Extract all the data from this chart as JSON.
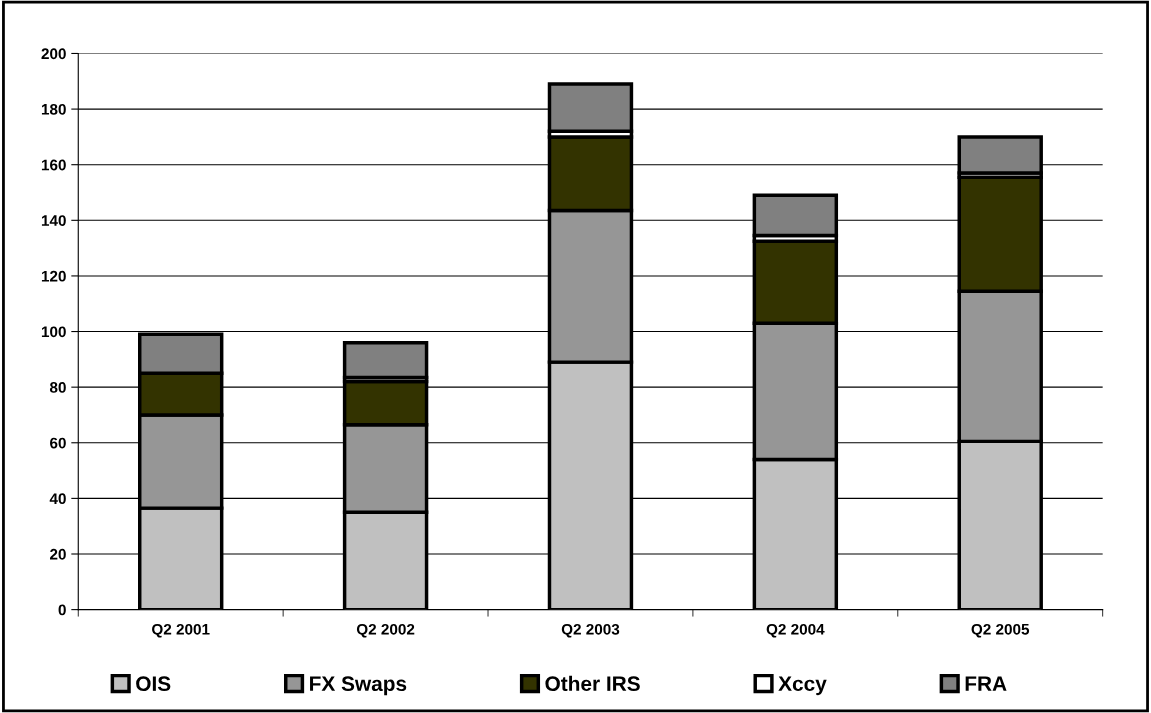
{
  "chart_data": {
    "type": "bar",
    "stacked": true,
    "categories": [
      "Q2 2001",
      "Q2 2002",
      "Q2 2003",
      "Q2 2004",
      "Q2 2005"
    ],
    "series": [
      {
        "name": "OIS",
        "color": "#c0c0c0",
        "values": [
          36.5,
          35,
          89,
          54,
          60.5
        ]
      },
      {
        "name": "FX Swaps",
        "color": "#969696",
        "values": [
          33.5,
          31.5,
          54.5,
          49,
          54
        ]
      },
      {
        "name": "Other IRS",
        "color": "#333300",
        "values": [
          15,
          15.5,
          26.5,
          29.5,
          41
        ]
      },
      {
        "name": "Xccy",
        "color": "#ffffff",
        "values": [
          null,
          1.5,
          2,
          2,
          1.5
        ]
      },
      {
        "name": "FRA",
        "color": "#808080",
        "values": [
          14,
          12.5,
          17,
          14.5,
          13
        ]
      }
    ],
    "ylim": [
      0,
      200
    ],
    "yticks": [
      0,
      20,
      40,
      60,
      80,
      100,
      120,
      140,
      160,
      180,
      200
    ],
    "grid": "y",
    "legend": "bottom"
  }
}
